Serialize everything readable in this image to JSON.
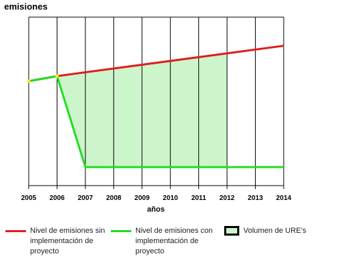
{
  "chart_data": {
    "type": "line",
    "ylabel": "emisiones",
    "xlabel": "años",
    "categories": [
      "2005",
      "2006",
      "2007",
      "2008",
      "2009",
      "2010",
      "2011",
      "2012",
      "2013",
      "2014"
    ],
    "xlim": [
      2005,
      2014
    ],
    "ylim": [
      0,
      100
    ],
    "grid": "vertical",
    "series": [
      {
        "name": "Nivel de emisiones sin implementación de proyecto",
        "color": "#dd1f1f",
        "x": [
          2005,
          2006,
          2014
        ],
        "y": [
          62,
          65,
          83
        ]
      },
      {
        "name": "Nivel de emisiones con implementación de proyecto",
        "color": "#22dd22",
        "x": [
          2005,
          2006,
          2007,
          2014
        ],
        "y": [
          62,
          65,
          11,
          11
        ]
      }
    ],
    "area": {
      "name": "Volumen de URE's",
      "color": "#ccf5cc",
      "x_range": [
        2006,
        2012
      ]
    },
    "markers": [
      {
        "x": 2005,
        "y": 62,
        "color": "#ffee00"
      },
      {
        "x": 2006,
        "y": 65,
        "color": "#ffee00"
      }
    ]
  },
  "legend": [
    {
      "label": "Nivel de emisiones sin implementación de proyecto",
      "color": "#dd1f1f"
    },
    {
      "label": "Nivel de emisiones con implementación de proyecto",
      "color": "#22dd22"
    },
    {
      "label": "Volumen de URE's",
      "color": "#ccf5cc"
    }
  ]
}
